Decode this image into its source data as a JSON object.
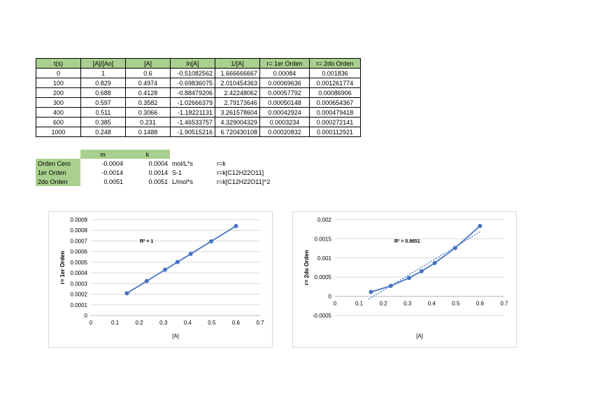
{
  "main_table": {
    "headers": [
      "t(s)",
      "[A]/[Ao]",
      "[A]",
      "ln[A]",
      "1/[A]",
      "r= 1er Orden",
      "r= 2do Orden"
    ],
    "rows": [
      [
        "0",
        "1",
        "0.6",
        "-0.51082562",
        "1.666666667",
        "0.00084",
        "0.001836"
      ],
      [
        "100",
        "0.829",
        "0.4974",
        "-0.69836075",
        "2.010454363",
        "0.00069636",
        "0.001261774"
      ],
      [
        "200",
        "0.688",
        "0.4128",
        "-0.88479206",
        "2.42248062",
        "0.00057792",
        "0.00086906"
      ],
      [
        "300",
        "0.597",
        "0.3582",
        "-1.02666379",
        "2.79173646",
        "0.00050148",
        "0.000654367"
      ],
      [
        "400",
        "0.511",
        "0.3066",
        "-1.18221131",
        "3.261578604",
        "0.00042924",
        "0.000479418"
      ],
      [
        "600",
        "0.385",
        "0.231",
        "-1.46533757",
        "4.329004329",
        "0.0003234",
        "0.000272141"
      ],
      [
        "1000",
        "0.248",
        "0.1488",
        "-1.90515216",
        "6.720430108",
        "0.00020832",
        "0.000112921"
      ]
    ]
  },
  "k_table": {
    "headers": [
      "m",
      "k"
    ],
    "rows": [
      {
        "label": "Orden Cero",
        "m": "-0.0004",
        "k": "0.0004",
        "unit": "mol/L*s",
        "law": "r=k"
      },
      {
        "label": "1er Orden",
        "m": "-0.0014",
        "k": "0.0014",
        "unit": "S-1",
        "law": "r=k[C12H22O11]"
      },
      {
        "label": "2do Orden",
        "m": "0.0051",
        "k": "0.0051",
        "unit": "L/mol*s",
        "law": "r=k[C12H22O11]^2"
      }
    ]
  },
  "chart_data": [
    {
      "type": "scatter",
      "xlabel": "[A]",
      "ylabel": "r= 1er Orden",
      "r2_label": "R² = 1",
      "xlim": [
        0,
        0.7
      ],
      "ylim": [
        0,
        0.0009
      ],
      "xticks": [
        "0",
        "0.1",
        "0.2",
        "0.3",
        "0.4",
        "0.5",
        "0.6",
        "0.7"
      ],
      "yticks": [
        "0",
        "0.0001",
        "0.0002",
        "0.0003",
        "0.0004",
        "0.0005",
        "0.0006",
        "0.0007",
        "0.0008",
        "0.0009"
      ],
      "x": [
        0.1488,
        0.231,
        0.3066,
        0.3582,
        0.4128,
        0.4974,
        0.6
      ],
      "y": [
        0.00020832,
        0.0003234,
        0.00042924,
        0.00050148,
        0.00057792,
        0.00069636,
        0.00084
      ],
      "trendline": false,
      "color": "#4472c4"
    },
    {
      "type": "scatter",
      "xlabel": "[A]",
      "ylabel": "r= 2do Orden",
      "r2_label": "R² = 0.9651",
      "xlim": [
        0,
        0.7
      ],
      "ylim": [
        -0.0005,
        0.002
      ],
      "xticks": [
        "0",
        "0.1",
        "0.2",
        "0.3",
        "0.4",
        "0.5",
        "0.6",
        "0.7"
      ],
      "yticks": [
        "-0.0005",
        "0",
        "0.0005",
        "0.001",
        "0.0015",
        "0.002"
      ],
      "x": [
        0.1488,
        0.231,
        0.3066,
        0.3582,
        0.4128,
        0.4974,
        0.6
      ],
      "y": [
        0.000112921,
        0.000272141,
        0.000479418,
        0.000654367,
        0.00086906,
        0.001261774,
        0.001836
      ],
      "trendline": true,
      "color": "#4472c4"
    }
  ]
}
